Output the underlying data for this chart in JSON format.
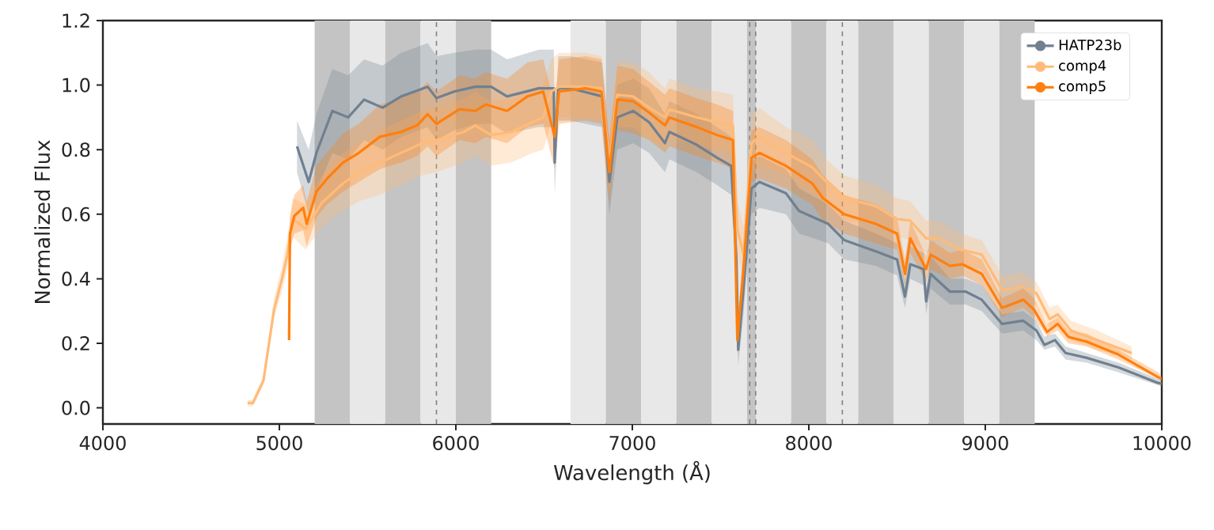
{
  "chart_data": {
    "type": "line",
    "xlabel": "Wavelength (Å)",
    "ylabel": "Normalized Flux",
    "xlim": [
      4000,
      10000
    ],
    "xticks": [
      4000,
      5000,
      6000,
      7000,
      8000,
      9000,
      10000
    ],
    "ylim": [
      -0.05,
      1.2
    ],
    "yticks": [
      {
        "value": 0,
        "label": "0.0"
      },
      0.2,
      0.4,
      0.6,
      0.8,
      {
        "value": 1,
        "label": "1.0"
      },
      1.2
    ],
    "legend": "top right",
    "grid": false,
    "line_style": "solid",
    "series": [
      {
        "name": "HATP23b",
        "color": "#708090",
        "x": [
          5100,
          5166,
          5210,
          5300,
          5390,
          5480,
          5585,
          5690,
          5840,
          5890,
          5990,
          6110,
          6200,
          6290,
          6470,
          6555,
          6560,
          6580,
          6650,
          6830,
          6870,
          6915,
          7005,
          7095,
          7185,
          7210,
          7365,
          7480,
          7560,
          7590,
          7600,
          7630,
          7675,
          7720,
          7870,
          7945,
          8110,
          8200,
          8380,
          8500,
          8545,
          8575,
          8650,
          8665,
          8690,
          8800,
          8890,
          8980,
          9095,
          9215,
          9290,
          9335,
          9395,
          9455,
          9575,
          9755,
          9980,
          10000
        ],
        "values": [
          0.81,
          0.7,
          0.79,
          0.92,
          0.9,
          0.955,
          0.93,
          0.965,
          0.995,
          0.96,
          0.98,
          0.995,
          0.995,
          0.965,
          0.99,
          0.99,
          0.76,
          0.99,
          0.99,
          0.965,
          0.7,
          0.9,
          0.92,
          0.885,
          0.82,
          0.855,
          0.815,
          0.775,
          0.75,
          0.46,
          0.18,
          0.37,
          0.68,
          0.7,
          0.665,
          0.61,
          0.57,
          0.52,
          0.485,
          0.46,
          0.345,
          0.445,
          0.43,
          0.33,
          0.415,
          0.36,
          0.36,
          0.335,
          0.26,
          0.27,
          0.24,
          0.195,
          0.21,
          0.17,
          0.155,
          0.125,
          0.077,
          0.075
        ],
        "lower": [
          0.73,
          0.6,
          0.67,
          0.79,
          0.77,
          0.83,
          0.8,
          0.84,
          0.87,
          0.83,
          0.86,
          0.88,
          0.88,
          0.85,
          0.87,
          0.87,
          0.66,
          0.89,
          0.89,
          0.87,
          0.6,
          0.8,
          0.82,
          0.79,
          0.73,
          0.77,
          0.73,
          0.69,
          0.66,
          0.38,
          0.13,
          0.29,
          0.6,
          0.62,
          0.6,
          0.54,
          0.51,
          0.46,
          0.44,
          0.41,
          0.31,
          0.4,
          0.38,
          0.29,
          0.37,
          0.32,
          0.32,
          0.3,
          0.23,
          0.24,
          0.21,
          0.18,
          0.19,
          0.15,
          0.14,
          0.11,
          0.07,
          0.065
        ],
        "upper": [
          0.89,
          0.8,
          0.91,
          1.05,
          1.03,
          1.08,
          1.06,
          1.1,
          1.13,
          1.09,
          1.1,
          1.11,
          1.11,
          1.08,
          1.11,
          1.11,
          0.86,
          1.09,
          1.09,
          1.07,
          0.8,
          1.0,
          1.02,
          0.99,
          0.91,
          0.95,
          0.91,
          0.87,
          0.84,
          0.54,
          0.23,
          0.45,
          0.76,
          0.78,
          0.74,
          0.68,
          0.63,
          0.58,
          0.54,
          0.51,
          0.39,
          0.5,
          0.48,
          0.37,
          0.47,
          0.4,
          0.4,
          0.38,
          0.29,
          0.3,
          0.27,
          0.22,
          0.23,
          0.19,
          0.17,
          0.14,
          0.09,
          0.085
        ]
      },
      {
        "name": "comp4",
        "color": "#ffbb78",
        "x": [
          4820,
          4850,
          4910,
          4970,
          5015,
          5045,
          5075,
          5150,
          5240,
          5360,
          5450,
          5570,
          5690,
          5810,
          5890,
          6045,
          6110,
          6200,
          6315,
          6435,
          6495,
          6540,
          6585,
          6735,
          6825,
          6870,
          6915,
          7005,
          7095,
          7185,
          7210,
          7365,
          7480,
          7570,
          7595,
          7630,
          7675,
          7720,
          7870,
          8020,
          8100,
          8200,
          8380,
          8500,
          8575,
          8665,
          8735,
          8860,
          8980,
          9095,
          9215,
          9290,
          9365,
          9410,
          9485,
          9635,
          9830
        ],
        "values": [
          0.015,
          0.015,
          0.085,
          0.305,
          0.4,
          0.475,
          0.585,
          0.555,
          0.635,
          0.695,
          0.73,
          0.76,
          0.79,
          0.82,
          0.83,
          0.855,
          0.875,
          0.845,
          0.855,
          0.885,
          0.9,
          0.98,
          0.995,
          0.995,
          0.99,
          0.76,
          0.97,
          0.965,
          0.93,
          0.9,
          0.925,
          0.9,
          0.885,
          0.875,
          0.555,
          0.475,
          0.82,
          0.84,
          0.79,
          0.745,
          0.7,
          0.65,
          0.625,
          0.585,
          0.58,
          0.525,
          0.525,
          0.49,
          0.475,
          0.365,
          0.375,
          0.355,
          0.275,
          0.29,
          0.24,
          0.21,
          0.17
        ],
        "lower": [
          0.005,
          0.005,
          0.07,
          0.28,
          0.36,
          0.43,
          0.53,
          0.49,
          0.56,
          0.61,
          0.64,
          0.66,
          0.69,
          0.72,
          0.73,
          0.76,
          0.78,
          0.75,
          0.76,
          0.79,
          0.8,
          0.88,
          0.9,
          0.9,
          0.89,
          0.66,
          0.87,
          0.87,
          0.83,
          0.81,
          0.84,
          0.81,
          0.8,
          0.79,
          0.48,
          0.4,
          0.73,
          0.75,
          0.72,
          0.67,
          0.63,
          0.58,
          0.57,
          0.53,
          0.52,
          0.48,
          0.48,
          0.44,
          0.43,
          0.33,
          0.34,
          0.32,
          0.25,
          0.26,
          0.21,
          0.18,
          0.15
        ],
        "upper": [
          0.025,
          0.025,
          0.1,
          0.34,
          0.44,
          0.53,
          0.65,
          0.63,
          0.72,
          0.79,
          0.82,
          0.86,
          0.89,
          0.92,
          0.93,
          0.96,
          0.98,
          0.95,
          0.96,
          0.99,
          1.0,
          1.08,
          1.1,
          1.1,
          1.09,
          0.86,
          1.07,
          1.07,
          1.04,
          0.99,
          1.02,
          0.99,
          0.98,
          0.97,
          0.64,
          0.56,
          0.91,
          0.93,
          0.87,
          0.83,
          0.77,
          0.72,
          0.69,
          0.65,
          0.64,
          0.58,
          0.58,
          0.54,
          0.52,
          0.41,
          0.42,
          0.39,
          0.31,
          0.32,
          0.27,
          0.24,
          0.19
        ]
      },
      {
        "name": "comp5",
        "color": "#ff7f0e",
        "x": [
          5055,
          5060,
          5085,
          5135,
          5155,
          5210,
          5270,
          5360,
          5450,
          5570,
          5690,
          5780,
          5840,
          5890,
          6020,
          6110,
          6170,
          6290,
          6405,
          6495,
          6560,
          6585,
          6735,
          6825,
          6870,
          6915,
          7005,
          7095,
          7185,
          7210,
          7365,
          7480,
          7570,
          7595,
          7630,
          7675,
          7720,
          7870,
          8020,
          8080,
          8200,
          8380,
          8500,
          8545,
          8575,
          8665,
          8690,
          8800,
          8870,
          8980,
          9095,
          9215,
          9275,
          9350,
          9410,
          9470,
          9575,
          9755,
          9980,
          10000
        ],
        "values": [
          0.21,
          0.54,
          0.595,
          0.62,
          0.57,
          0.67,
          0.71,
          0.76,
          0.79,
          0.84,
          0.855,
          0.875,
          0.91,
          0.88,
          0.925,
          0.92,
          0.94,
          0.92,
          0.965,
          0.98,
          0.84,
          0.98,
          0.99,
          0.98,
          0.73,
          0.955,
          0.95,
          0.915,
          0.875,
          0.9,
          0.87,
          0.845,
          0.83,
          0.21,
          0.43,
          0.775,
          0.79,
          0.75,
          0.695,
          0.65,
          0.6,
          0.57,
          0.54,
          0.415,
          0.525,
          0.43,
          0.475,
          0.44,
          0.445,
          0.415,
          0.31,
          0.335,
          0.305,
          0.235,
          0.26,
          0.22,
          0.205,
          0.165,
          0.095,
          0.09
        ],
        "lower": [
          0.19,
          0.49,
          0.54,
          0.55,
          0.5,
          0.59,
          0.63,
          0.67,
          0.7,
          0.74,
          0.76,
          0.78,
          0.81,
          0.78,
          0.83,
          0.82,
          0.84,
          0.82,
          0.87,
          0.88,
          0.74,
          0.88,
          0.89,
          0.88,
          0.63,
          0.86,
          0.85,
          0.83,
          0.79,
          0.81,
          0.78,
          0.76,
          0.74,
          0.16,
          0.36,
          0.7,
          0.71,
          0.68,
          0.63,
          0.58,
          0.54,
          0.51,
          0.49,
          0.38,
          0.48,
          0.39,
          0.43,
          0.4,
          0.41,
          0.38,
          0.28,
          0.31,
          0.28,
          0.22,
          0.24,
          0.2,
          0.19,
          0.15,
          0.09,
          0.08
        ],
        "upper": [
          0.23,
          0.59,
          0.66,
          0.69,
          0.64,
          0.75,
          0.79,
          0.85,
          0.88,
          0.94,
          0.96,
          0.98,
          1.01,
          0.98,
          1.03,
          1.02,
          1.04,
          1.02,
          1.07,
          1.08,
          0.94,
          1.08,
          1.09,
          1.08,
          0.83,
          1.06,
          1.05,
          1.01,
          0.97,
          0.99,
          0.96,
          0.94,
          0.92,
          0.26,
          0.5,
          0.86,
          0.87,
          0.83,
          0.77,
          0.72,
          0.66,
          0.63,
          0.59,
          0.46,
          0.58,
          0.47,
          0.52,
          0.48,
          0.49,
          0.46,
          0.34,
          0.37,
          0.34,
          0.26,
          0.28,
          0.24,
          0.23,
          0.18,
          0.11,
          0.1
        ]
      }
    ],
    "bands": [
      {
        "axis": "x",
        "from": 5200,
        "to": 5400,
        "color": "#c4c4c4"
      },
      {
        "axis": "x",
        "from": 5400,
        "to": 5600,
        "color": "#e8e8e8"
      },
      {
        "axis": "x",
        "from": 5600,
        "to": 5800,
        "color": "#c4c4c4"
      },
      {
        "axis": "x",
        "from": 5800,
        "to": 6000,
        "color": "#e8e8e8"
      },
      {
        "axis": "x",
        "from": 6000,
        "to": 6200,
        "color": "#c4c4c4"
      },
      {
        "axis": "x",
        "from": 6650,
        "to": 6850,
        "color": "#e8e8e8"
      },
      {
        "axis": "x",
        "from": 6850,
        "to": 7050,
        "color": "#c4c4c4"
      },
      {
        "axis": "x",
        "from": 7050,
        "to": 7250,
        "color": "#e8e8e8"
      },
      {
        "axis": "x",
        "from": 7250,
        "to": 7450,
        "color": "#c4c4c4"
      },
      {
        "axis": "x",
        "from": 7450,
        "to": 7650,
        "color": "#e8e8e8"
      },
      {
        "axis": "x",
        "from": 7650,
        "to": 7700,
        "color": "#c4c4c4"
      },
      {
        "axis": "x",
        "from": 7700,
        "to": 7900,
        "color": "#e8e8e8"
      },
      {
        "axis": "x",
        "from": 7900,
        "to": 8100,
        "color": "#c4c4c4"
      },
      {
        "axis": "x",
        "from": 8100,
        "to": 8280,
        "color": "#e8e8e8"
      },
      {
        "axis": "x",
        "from": 8280,
        "to": 8480,
        "color": "#c4c4c4"
      },
      {
        "axis": "x",
        "from": 8480,
        "to": 8680,
        "color": "#e8e8e8"
      },
      {
        "axis": "x",
        "from": 8680,
        "to": 8880,
        "color": "#c4c4c4"
      },
      {
        "axis": "x",
        "from": 8880,
        "to": 9080,
        "color": "#e8e8e8"
      },
      {
        "axis": "x",
        "from": 9080,
        "to": 9280,
        "color": "#c4c4c4"
      }
    ],
    "ref_lines": [
      {
        "axis": "x",
        "value": 5890,
        "color": "#808080",
        "line_style": "dashed"
      },
      {
        "axis": "x",
        "value": 7665,
        "color": "#808080",
        "line_style": "dashed"
      },
      {
        "axis": "x",
        "value": 7699,
        "color": "#808080",
        "line_style": "dashed"
      },
      {
        "axis": "x",
        "value": 8190,
        "color": "#808080",
        "line_style": "dashed"
      }
    ]
  }
}
